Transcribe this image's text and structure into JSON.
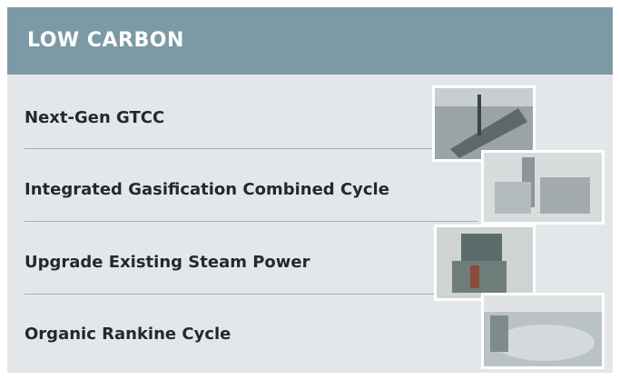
{
  "header": {
    "title": "LOW CARBON"
  },
  "items": [
    {
      "label": "Next-Gen GTCC"
    },
    {
      "label": "Integrated Gasification Combined Cycle"
    },
    {
      "label": "Upgrade Existing Steam Power"
    },
    {
      "label": "Organic Rankine Cycle"
    }
  ]
}
